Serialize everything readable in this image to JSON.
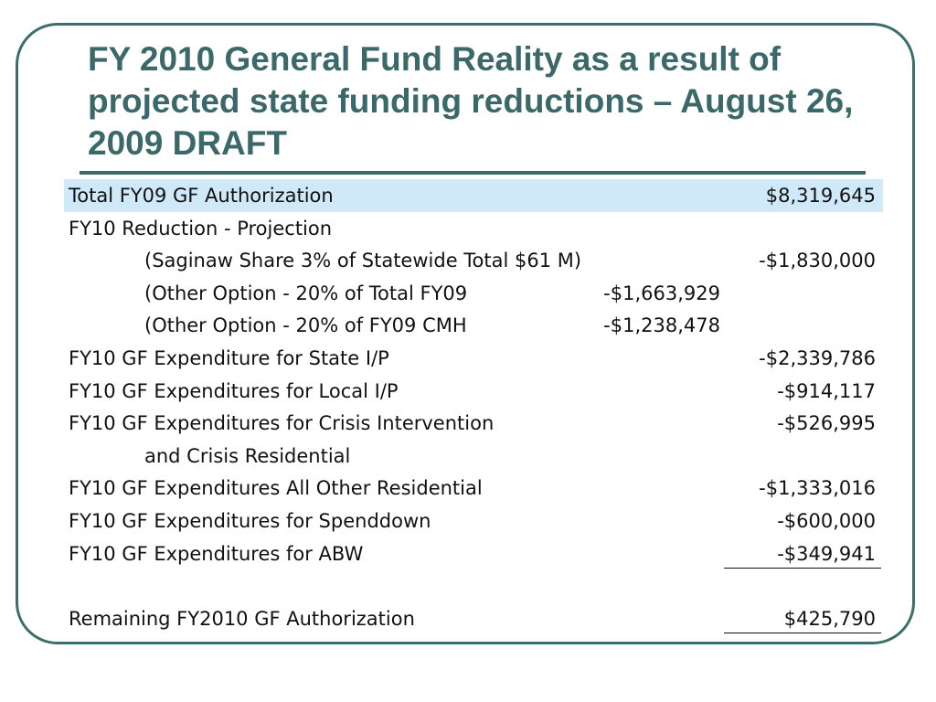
{
  "title": "FY 2010 General Fund Reality as a result of projected state funding reductions – August 26, 2009 DRAFT",
  "rows": [
    {
      "label": "Total FY09 GF Authorization",
      "value": "$8,319,645"
    },
    {
      "label": "FY10 Reduction - Projection",
      "value": ""
    },
    {
      "label": "(Saginaw Share 3% of Statewide Total $61 M)",
      "value": "-$1,830,000"
    },
    {
      "label": "(Other Option - 20% of Total FY09",
      "mid_value": "-$1,663,929"
    },
    {
      "label": "(Other Option - 20% of FY09 CMH",
      "mid_value": "-$1,238,478"
    },
    {
      "label": "FY10 GF Expenditure for State I/P",
      "value": "-$2,339,786"
    },
    {
      "label": "FY10 GF Expenditures for Local I/P",
      "value": "-$914,117"
    },
    {
      "label": "FY10 GF Expenditures for Crisis Intervention",
      "value": "-$526,995"
    },
    {
      "label": "and Crisis Residential",
      "value": ""
    },
    {
      "label": "FY10 GF Expenditures All Other Residential",
      "value": "-$1,333,016"
    },
    {
      "label": "FY10 GF Expenditures for Spenddown",
      "value": "-$600,000"
    },
    {
      "label": "FY10 GF Expenditures for ABW",
      "value": "-$349,941"
    },
    {
      "label": "Remaining FY2010 GF Authorization",
      "value": "$425,790"
    }
  ]
}
